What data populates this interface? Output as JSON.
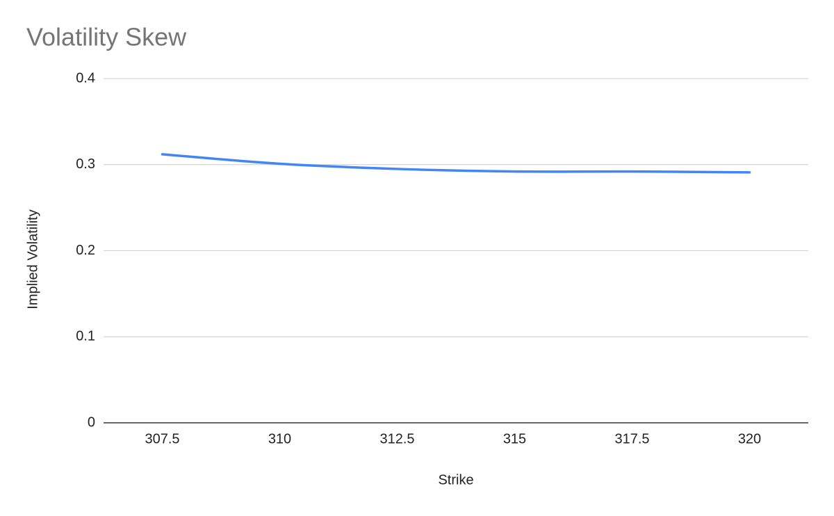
{
  "chart_data": {
    "type": "line",
    "title": "Volatility Skew",
    "x_label": "Strike",
    "y_label": "Implied Volatility",
    "categories": [
      "307.5",
      "310",
      "312.5",
      "315",
      "317.5",
      "320"
    ],
    "series": [
      {
        "name": "Implied Volatility",
        "color": "#4285f4",
        "values": [
          0.312,
          0.301,
          0.295,
          0.292,
          0.292,
          0.291
        ]
      }
    ],
    "ylim": [
      0,
      0.4
    ],
    "yticks": [
      0,
      0.1,
      0.2,
      0.3,
      0.4
    ],
    "grid": true
  }
}
